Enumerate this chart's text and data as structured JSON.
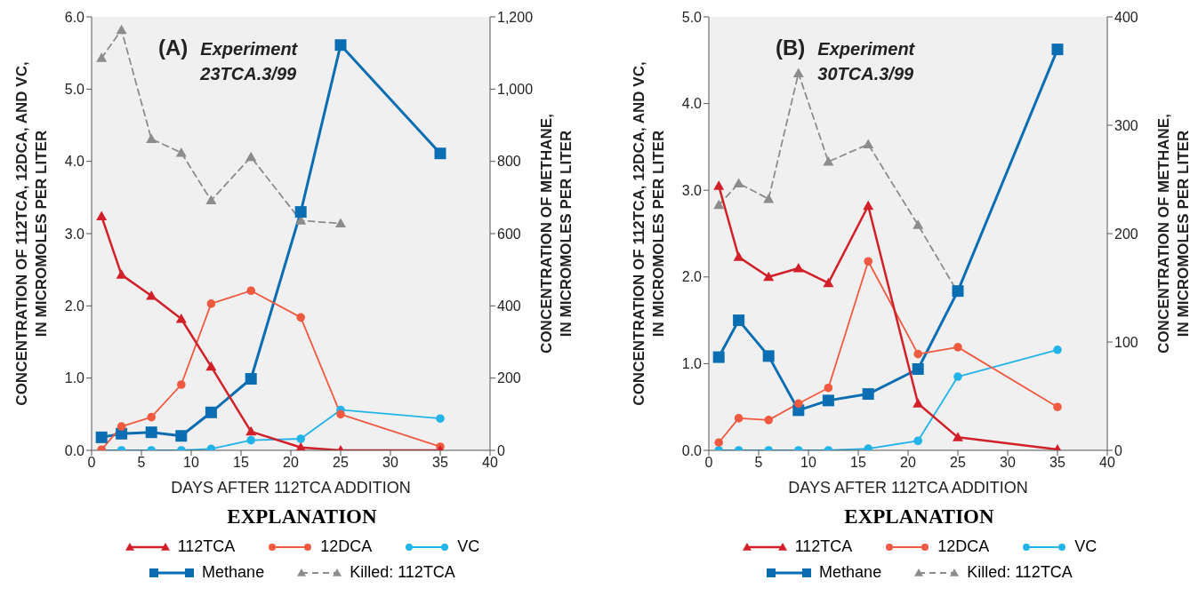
{
  "chart_data": [
    {
      "type": "line",
      "title": "(A)",
      "subtitle": "Experiment\n23TCA.3/99",
      "xlabel": "DAYS AFTER 112TCA ADDITION",
      "ylabel": "CONCENTRATION OF 112TCA, 12DCA, AND VC,\nIN MICROMOLES PER LITER",
      "y2label": "CONCENTRATION OF METHANE,\nIN MICROMOLES PER LITER",
      "legend_title": "EXPLANATION",
      "legend": "bottom",
      "grid": false,
      "x": [
        1,
        3,
        6,
        9,
        12,
        16,
        21,
        25,
        35
      ],
      "xlim": [
        0,
        40
      ],
      "xticks": [
        0,
        5,
        10,
        15,
        20,
        25,
        30,
        35,
        40
      ],
      "ylim": [
        0,
        6
      ],
      "yticks": [
        {
          "value": 0,
          "label": "0.0"
        },
        {
          "value": 1,
          "label": "1.0"
        },
        {
          "value": 2,
          "label": "2.0"
        },
        {
          "value": 3,
          "label": "3.0"
        },
        {
          "value": 4,
          "label": "4.0"
        },
        {
          "value": 5,
          "label": "5.0"
        },
        {
          "value": 6,
          "label": "6.0"
        }
      ],
      "y2lim": [
        0,
        1200
      ],
      "y2ticks": [
        0,
        200,
        400,
        600,
        800,
        {
          "value": 1000,
          "label": "1,000"
        },
        {
          "value": 1200,
          "label": "1,200"
        }
      ],
      "series": [
        {
          "name": "112TCA",
          "color": "#d2202a",
          "marker": "triangle",
          "line_style": "solid",
          "values": [
            3.24,
            2.43,
            2.14,
            1.82,
            1.16,
            0.26,
            0.04,
            0,
            0
          ]
        },
        {
          "name": "12DCA",
          "color": "#ef5a40",
          "marker": "circle",
          "line_style": "solid",
          "values": [
            0.01,
            0.33,
            0.46,
            0.91,
            2.03,
            2.21,
            1.84,
            0.5,
            0.05
          ]
        },
        {
          "name": "VC",
          "color": "#22b4e8",
          "marker": "circle",
          "line_style": "solid",
          "values": [
            0,
            0,
            0,
            0,
            0.02,
            0.14,
            0.16,
            0.56,
            0.44
          ]
        },
        {
          "name": "Methane",
          "color": "#0b6db2",
          "marker": "square",
          "line_style": "solid",
          "axis": "y2",
          "values": [
            36,
            46,
            50,
            40,
            105,
            198,
            660,
            1122,
            822
          ]
        },
        {
          "name": "Killed: 112TCA",
          "color": "#8c8c8c",
          "marker": "triangle",
          "line_style": "dashed",
          "values": [
            5.43,
            5.82,
            4.31,
            4.12,
            3.46,
            4.06,
            3.18,
            3.14,
            null
          ]
        }
      ]
    },
    {
      "type": "line",
      "title": "(B)",
      "subtitle": "Experiment\n30TCA.3/99",
      "xlabel": "DAYS AFTER 112TCA ADDITION",
      "ylabel": "CONCENTRATION OF 112TCA, 12DCA, AND VC,\nIN MICROMOLES PER LITER",
      "y2label": "CONCENTRATION OF METHANE,\nIN MICROMOLES PER LITER",
      "legend_title": "EXPLANATION",
      "legend": "bottom",
      "grid": false,
      "x": [
        1,
        3,
        6,
        9,
        12,
        16,
        21,
        25,
        35
      ],
      "xlim": [
        0,
        40
      ],
      "xticks": [
        0,
        5,
        10,
        15,
        20,
        25,
        30,
        35,
        40
      ],
      "ylim": [
        0,
        5
      ],
      "yticks": [
        {
          "value": 0,
          "label": "0.0"
        },
        {
          "value": 1,
          "label": "1.0"
        },
        {
          "value": 2,
          "label": "2.0"
        },
        {
          "value": 3,
          "label": "3.0"
        },
        {
          "value": 4,
          "label": "4.0"
        },
        {
          "value": 5,
          "label": "5.0"
        }
      ],
      "y2lim": [
        0,
        400
      ],
      "y2ticks": [
        0,
        100,
        200,
        300,
        400
      ],
      "series": [
        {
          "name": "112TCA",
          "color": "#d2202a",
          "marker": "triangle",
          "line_style": "solid",
          "values": [
            3.05,
            2.23,
            2.0,
            2.1,
            1.93,
            2.82,
            0.54,
            0.15,
            0.01
          ]
        },
        {
          "name": "12DCA",
          "color": "#ef5a40",
          "marker": "circle",
          "line_style": "solid",
          "values": [
            0.09,
            0.37,
            0.35,
            0.54,
            0.72,
            2.18,
            1.11,
            1.19,
            0.5
          ]
        },
        {
          "name": "VC",
          "color": "#22b4e8",
          "marker": "circle",
          "line_style": "solid",
          "values": [
            0,
            0,
            0,
            0,
            0,
            0.02,
            0.11,
            0.85,
            1.16
          ]
        },
        {
          "name": "Methane",
          "color": "#0b6db2",
          "marker": "square",
          "line_style": "solid",
          "axis": "y2",
          "values": [
            86,
            120,
            87,
            37,
            46,
            52,
            75,
            147,
            370
          ]
        },
        {
          "name": "Killed: 112TCA",
          "color": "#8c8c8c",
          "marker": "triangle",
          "line_style": "dashed",
          "values": [
            2.83,
            3.08,
            2.9,
            4.35,
            3.33,
            3.53,
            2.6,
            1.82,
            null
          ]
        }
      ]
    }
  ]
}
